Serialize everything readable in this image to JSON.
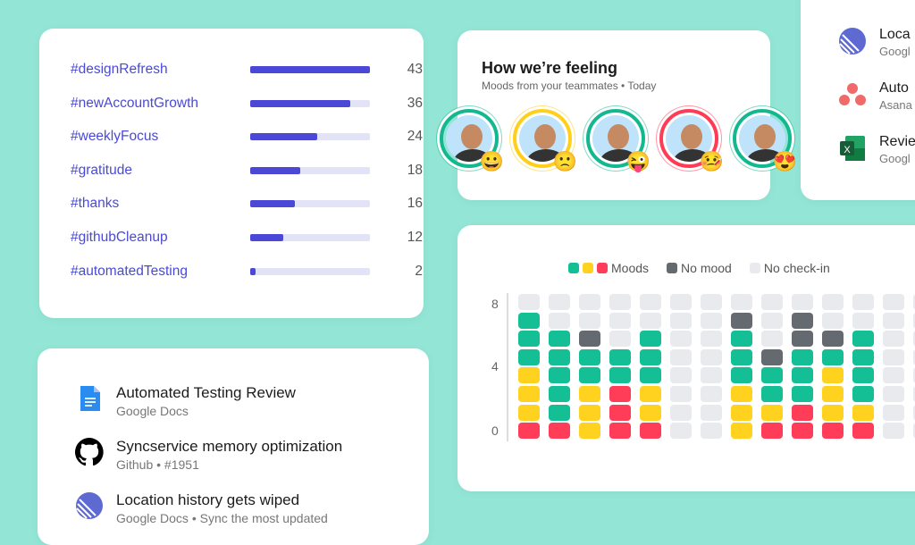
{
  "tags": [
    {
      "name": "#designRefresh",
      "count": 43
    },
    {
      "name": "#newAccountGrowth",
      "count": 36
    },
    {
      "name": "#weeklyFocus",
      "count": 24
    },
    {
      "name": "#gratitude",
      "count": 18
    },
    {
      "name": "#thanks",
      "count": 16
    },
    {
      "name": "#githubCleanup",
      "count": 12
    },
    {
      "name": "#automatedTesting",
      "count": 2
    }
  ],
  "feeling": {
    "title": "How we’re feeling",
    "subtitle": "Moods from your teammates • Today",
    "avatars": [
      {
        "ring": "#14b890",
        "emoji": "😀"
      },
      {
        "ring": "#ffcf1a",
        "emoji": "🙁"
      },
      {
        "ring": "#14b890",
        "emoji": "😜"
      },
      {
        "ring": "#ff3b55",
        "emoji": "🤒"
      },
      {
        "ring": "#14b890",
        "emoji": "😍"
      }
    ]
  },
  "apps": [
    {
      "title": "Loca",
      "sub": "Googl",
      "icon": "linear-icon"
    },
    {
      "title": "Auto",
      "sub": "Asana",
      "icon": "asana-icon"
    },
    {
      "title": "Revie",
      "sub": "Googl",
      "icon": "excel-icon"
    }
  ],
  "mood": {
    "legend": {
      "moods": "Moods",
      "no_mood": "No mood",
      "no_checkin": "No check-in"
    },
    "colors": {
      "g": "#14bf96",
      "y": "#ffd21f",
      "r": "#ff3d58",
      "d": "#656970",
      "e": "#e9eaee"
    },
    "y_ticks": [
      "8",
      "4",
      "0"
    ],
    "columns": [
      "eggg yyyr",
      "eegggggr",
      "eedggyyy",
      "eeeggrrr",
      "eegggyyr",
      "eeeeeeee",
      "eeeeeeee",
      "edgggyyy",
      "eeedggyr",
      "eddgggrr",
      "eedgyyyr",
      "eeggggyr",
      "eeeeeeee",
      "eeeeeeee"
    ]
  },
  "docs": [
    {
      "title": "Automated Testing Review",
      "sub": "Google Docs",
      "icon": "google-docs-icon"
    },
    {
      "title": "Syncservice memory optimization",
      "sub": "Github • #1951",
      "icon": "github-icon"
    },
    {
      "title": "Location history gets wiped",
      "sub": "Google Docs • Sync the most updated",
      "icon": "linear-icon"
    }
  ]
}
